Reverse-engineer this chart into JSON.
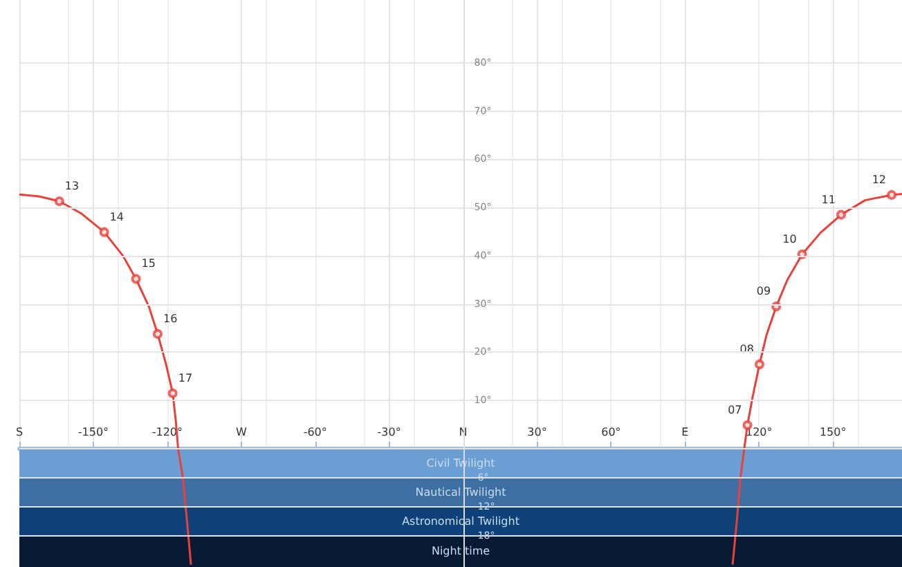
{
  "chart_data": {
    "type": "line",
    "xlim": [
      -180,
      178
    ],
    "ylim": [
      -24.5,
      93
    ],
    "xticks": [
      {
        "value": -180,
        "label": "S"
      },
      {
        "value": -150,
        "label": "-150°"
      },
      {
        "value": -120,
        "label": "-120°"
      },
      {
        "value": -90,
        "label": "W"
      },
      {
        "value": -60,
        "label": "-60°"
      },
      {
        "value": -30,
        "label": "-30°"
      },
      {
        "value": 0,
        "label": "N"
      },
      {
        "value": 30,
        "label": "30°"
      },
      {
        "value": 60,
        "label": "60°"
      },
      {
        "value": 90,
        "label": "E"
      },
      {
        "value": 120,
        "label": "120°"
      },
      {
        "value": 150,
        "label": "150°"
      }
    ],
    "yticks": [
      {
        "value": -18,
        "label": "-18°"
      },
      {
        "value": -12,
        "label": "-12°"
      },
      {
        "value": -6,
        "label": "-6°"
      },
      {
        "value": 0,
        "label": null
      },
      {
        "value": 10,
        "label": "10°"
      },
      {
        "value": 20,
        "label": "20°"
      },
      {
        "value": 30,
        "label": "30°"
      },
      {
        "value": 40,
        "label": "40°"
      },
      {
        "value": 50,
        "label": "50°"
      },
      {
        "value": 60,
        "label": "60°"
      },
      {
        "value": 70,
        "label": "70°"
      },
      {
        "value": 80,
        "label": "80°"
      }
    ],
    "grid": true,
    "bands": [
      {
        "axis": "y",
        "from": -6,
        "to": 0,
        "label": "Civil Twilight",
        "color": "#6b9fd4"
      },
      {
        "axis": "y",
        "from": -12,
        "to": -6,
        "label": "Nautical Twilight",
        "color": "#3d6fa3"
      },
      {
        "axis": "y",
        "from": -18,
        "to": -12,
        "label": "Astronomical Twilight",
        "color": "#0e4178"
      },
      {
        "axis": "y",
        "from": -24.5,
        "to": -18,
        "label": "Night time",
        "color": "#071a33"
      }
    ],
    "series": [
      {
        "color": "#e8403a",
        "marker": "none",
        "line_style": "solid",
        "x": [
          -180,
          -172,
          -163.8,
          -155,
          -145.6,
          -138,
          -132.7,
          -127.5,
          -123.9,
          -120.5,
          -117.8,
          -116.5,
          -115.6,
          -113.7,
          -112,
          -110.4,
          null,
          109.3,
          111,
          112.5,
          114,
          115.3,
          117.5,
          120.2,
          123,
          127,
          131.5,
          137.5,
          145,
          153.3,
          163,
          173.8,
          178
        ],
        "values": [
          52.7,
          52.3,
          51.3,
          48.8,
          44.9,
          40,
          35.2,
          29.5,
          23.8,
          17.5,
          11.5,
          5.5,
          0,
          -6,
          -15,
          -24,
          null,
          -24,
          -15,
          -6,
          0,
          4.9,
          11,
          17.5,
          23.5,
          29.5,
          35,
          40.3,
          44.8,
          48.5,
          51.5,
          52.6,
          52.8
        ]
      },
      {
        "type": "scatter",
        "color": "#e8403a",
        "marker": "circle",
        "x": [
          115.3,
          120.2,
          127,
          137.5,
          153.3,
          173.8,
          -163.8,
          -145.6,
          -132.7,
          -123.9,
          -117.8
        ],
        "values": [
          4.9,
          17.5,
          29.5,
          40.3,
          48.5,
          52.6,
          51.3,
          44.9,
          35.2,
          23.8,
          11.5
        ]
      }
    ],
    "annotations": [
      {
        "text": "07",
        "x": 115.3,
        "y": 4.9
      },
      {
        "text": "08",
        "x": 120.2,
        "y": 17.5
      },
      {
        "text": "09",
        "x": 127,
        "y": 29.5
      },
      {
        "text": "10",
        "x": 137.5,
        "y": 40.3
      },
      {
        "text": "11",
        "x": 153.3,
        "y": 48.5
      },
      {
        "text": "12",
        "x": 173.8,
        "y": 52.6
      },
      {
        "text": "13",
        "x": -163.8,
        "y": 51.3
      },
      {
        "text": "14",
        "x": -145.6,
        "y": 44.9
      },
      {
        "text": "15",
        "x": -132.7,
        "y": 35.2
      },
      {
        "text": "16",
        "x": -123.9,
        "y": 23.8
      },
      {
        "text": "17",
        "x": -117.8,
        "y": 11.5
      }
    ]
  }
}
